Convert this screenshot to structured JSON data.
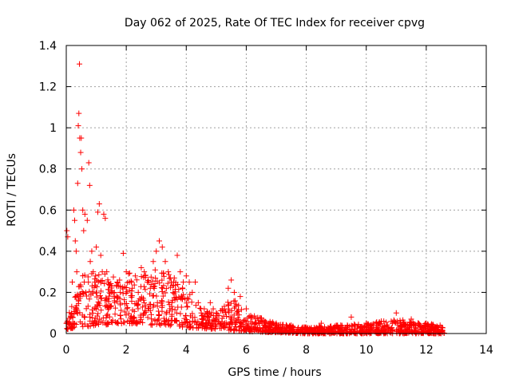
{
  "chart_data": {
    "type": "scatter",
    "title": "Day 062 of 2025, Rate Of TEC Index for receiver cpvg",
    "xlabel": "GPS time / hours",
    "ylabel": "ROTI / TECUs",
    "xlim": [
      0,
      14
    ],
    "ylim": [
      0,
      1.4
    ],
    "x_ticks": [
      0,
      2,
      4,
      6,
      8,
      10,
      12,
      14
    ],
    "x_tick_labels": [
      "0",
      "2",
      "4",
      "6",
      "8",
      "10",
      "12",
      "14"
    ],
    "y_ticks": [
      0,
      0.2,
      0.4,
      0.6,
      0.8,
      1.0,
      1.2,
      1.4
    ],
    "y_tick_labels": [
      "0",
      "0.2",
      "0.4",
      "0.6",
      "0.8",
      "1",
      "1.2",
      "1.4"
    ],
    "grid": true,
    "marker": "plus",
    "color": "#ff0000",
    "series": [
      {
        "name": "ROTI",
        "points": [
          [
            0.02,
            0.5
          ],
          [
            0.05,
            0.47
          ],
          [
            0.1,
            0.05
          ],
          [
            0.15,
            0.08
          ],
          [
            0.2,
            0.25
          ],
          [
            0.25,
            0.6
          ],
          [
            0.28,
            0.55
          ],
          [
            0.3,
            0.45
          ],
          [
            0.33,
            0.4
          ],
          [
            0.35,
            0.3
          ],
          [
            0.38,
            0.73
          ],
          [
            0.4,
            1.01
          ],
          [
            0.42,
            1.07
          ],
          [
            0.44,
            1.31
          ],
          [
            0.45,
            0.95
          ],
          [
            0.48,
            0.88
          ],
          [
            0.5,
            0.95
          ],
          [
            0.52,
            0.8
          ],
          [
            0.55,
            0.6
          ],
          [
            0.58,
            0.5
          ],
          [
            0.6,
            0.25
          ],
          [
            0.62,
            0.58
          ],
          [
            0.65,
            0.2
          ],
          [
            0.7,
            0.55
          ],
          [
            0.75,
            0.83
          ],
          [
            0.78,
            0.72
          ],
          [
            0.8,
            0.35
          ],
          [
            0.85,
            0.4
          ],
          [
            0.9,
            0.3
          ],
          [
            0.95,
            0.25
          ],
          [
            1.0,
            0.42
          ],
          [
            1.05,
            0.59
          ],
          [
            1.1,
            0.63
          ],
          [
            1.15,
            0.38
          ],
          [
            1.2,
            0.3
          ],
          [
            1.25,
            0.58
          ],
          [
            1.3,
            0.56
          ],
          [
            1.35,
            0.3
          ],
          [
            1.4,
            0.25
          ],
          [
            1.5,
            0.2
          ],
          [
            1.6,
            0.18
          ],
          [
            1.7,
            0.25
          ],
          [
            1.8,
            0.2
          ],
          [
            1.9,
            0.39
          ],
          [
            2.0,
            0.3
          ],
          [
            2.1,
            0.25
          ],
          [
            2.2,
            0.22
          ],
          [
            2.3,
            0.28
          ],
          [
            2.4,
            0.2
          ],
          [
            2.5,
            0.32
          ],
          [
            2.6,
            0.3
          ],
          [
            2.7,
            0.25
          ],
          [
            2.8,
            0.22
          ],
          [
            2.9,
            0.35
          ],
          [
            3.0,
            0.4
          ],
          [
            3.1,
            0.45
          ],
          [
            3.2,
            0.42
          ],
          [
            3.3,
            0.35
          ],
          [
            3.4,
            0.3
          ],
          [
            3.5,
            0.25
          ],
          [
            3.6,
            0.27
          ],
          [
            3.7,
            0.38
          ],
          [
            3.8,
            0.3
          ],
          [
            3.9,
            0.25
          ],
          [
            4.0,
            0.28
          ],
          [
            4.1,
            0.25
          ],
          [
            4.2,
            0.2
          ],
          [
            4.3,
            0.25
          ],
          [
            4.4,
            0.15
          ],
          [
            4.5,
            0.1
          ],
          [
            4.6,
            0.12
          ],
          [
            4.7,
            0.08
          ],
          [
            4.8,
            0.15
          ],
          [
            4.9,
            0.12
          ],
          [
            5.0,
            0.1
          ],
          [
            5.2,
            0.12
          ],
          [
            5.4,
            0.22
          ],
          [
            5.5,
            0.26
          ],
          [
            5.6,
            0.2
          ],
          [
            5.8,
            0.18
          ],
          [
            6.0,
            0.12
          ],
          [
            6.2,
            0.08
          ],
          [
            6.5,
            0.06
          ],
          [
            7.0,
            0.05
          ],
          [
            7.5,
            0.04
          ],
          [
            8.0,
            0.03
          ],
          [
            8.5,
            0.05
          ],
          [
            9.0,
            0.04
          ],
          [
            9.5,
            0.08
          ],
          [
            10.0,
            0.05
          ],
          [
            10.5,
            0.06
          ],
          [
            11.0,
            0.1
          ],
          [
            11.5,
            0.07
          ],
          [
            12.0,
            0.05
          ],
          [
            12.5,
            0.03
          ]
        ]
      }
    ],
    "dense_band": {
      "description_hidden": "",
      "upper_envelope": [
        [
          0.0,
          0.12
        ],
        [
          0.5,
          0.28
        ],
        [
          1.0,
          0.32
        ],
        [
          1.5,
          0.28
        ],
        [
          2.0,
          0.3
        ],
        [
          2.5,
          0.28
        ],
        [
          3.0,
          0.33
        ],
        [
          3.5,
          0.28
        ],
        [
          4.0,
          0.22
        ],
        [
          4.5,
          0.12
        ],
        [
          5.0,
          0.1
        ],
        [
          5.5,
          0.18
        ],
        [
          6.0,
          0.1
        ],
        [
          7.0,
          0.05
        ],
        [
          8.0,
          0.03
        ],
        [
          9.0,
          0.04
        ],
        [
          10.0,
          0.05
        ],
        [
          11.0,
          0.07
        ],
        [
          12.0,
          0.05
        ],
        [
          12.6,
          0.04
        ]
      ],
      "lower_envelope": [
        [
          0.0,
          0.02
        ],
        [
          1.0,
          0.04
        ],
        [
          2.0,
          0.05
        ],
        [
          3.0,
          0.04
        ],
        [
          4.0,
          0.03
        ],
        [
          5.0,
          0.02
        ],
        [
          6.0,
          0.01
        ],
        [
          8.0,
          0.0
        ],
        [
          10.0,
          0.0
        ],
        [
          12.6,
          0.0
        ]
      ],
      "x_range": [
        0.0,
        12.6
      ],
      "count": 1400
    }
  }
}
